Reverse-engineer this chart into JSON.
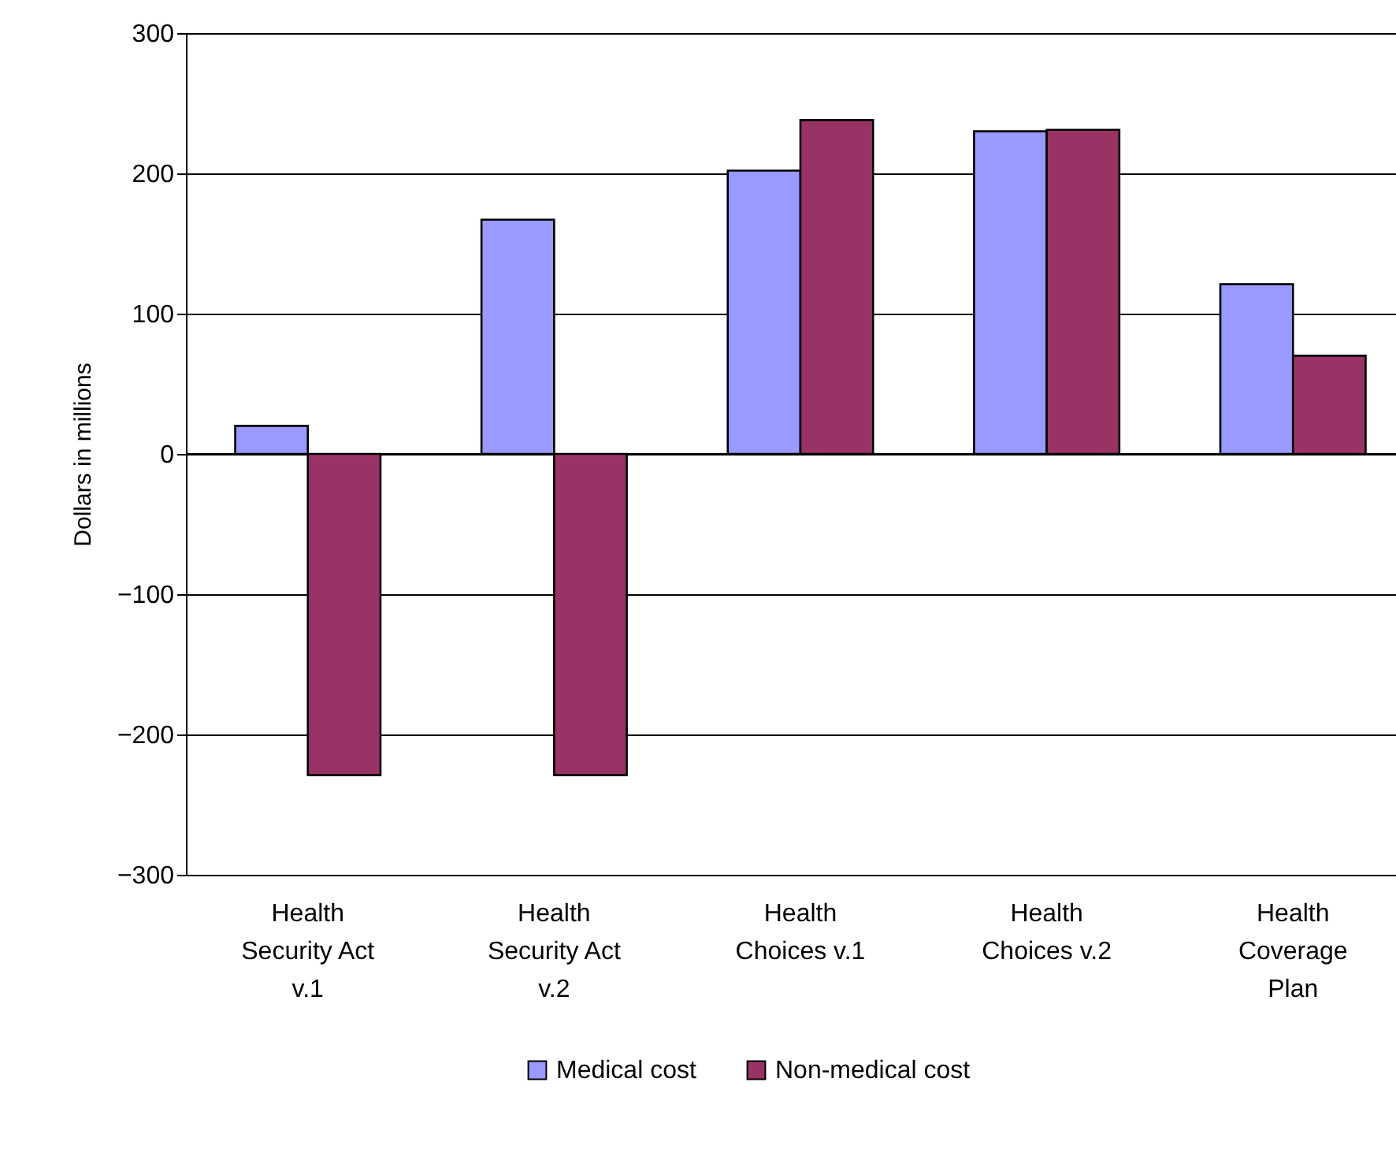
{
  "chart_data": {
    "type": "bar",
    "ylabel": "Dollars in millions",
    "categories": [
      "Health Security Act v.1",
      "Health Security Act v.2",
      "Health Choices v.1",
      "Health Choices v.2",
      "Health Coverage Plan"
    ],
    "series": [
      {
        "name": "Medical cost",
        "color": "#9999ff",
        "values": [
          20,
          167,
          202,
          230,
          121
        ]
      },
      {
        "name": "Non-medical cost",
        "color": "#993366",
        "values": [
          -229,
          -229,
          238,
          231,
          70
        ]
      }
    ],
    "ylim": [
      -300,
      300
    ],
    "yticks": [
      -300,
      -200,
      -100,
      0,
      100,
      200,
      300
    ],
    "grid": "y",
    "legend": "bottom"
  }
}
